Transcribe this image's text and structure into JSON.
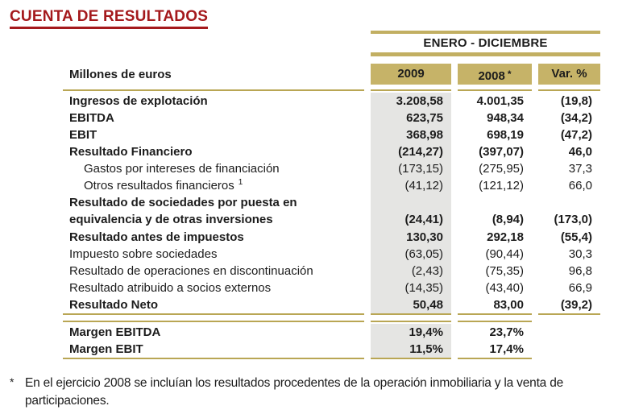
{
  "title": "CUENTA DE RESULTADOS",
  "colors": {
    "gold_fill": "#C6B368",
    "gold_rule": "#B9A654",
    "column_shade": "#E5E5E3",
    "title_red": "#A4191C"
  },
  "table": {
    "period_header": "ENERO - DICIEMBRE",
    "unit_label": "Millones de euros",
    "columns": {
      "y2009": "2009",
      "y2008": "2008",
      "y2008_note": "*",
      "variation": "Var. %"
    },
    "rows": [
      {
        "label": "Ingresos de explotación",
        "v2009": "3.208,58",
        "v2008": "4.001,35",
        "var": "(19,8)"
      },
      {
        "label": "EBITDA",
        "v2009": "623,75",
        "v2008": "948,34",
        "var": "(34,2)"
      },
      {
        "label": "EBIT",
        "v2009": "368,98",
        "v2008": "698,19",
        "var": "(47,2)"
      },
      {
        "label": "Resultado Financiero",
        "v2009": "(214,27)",
        "v2008": "(397,07)",
        "var": "46,0"
      },
      {
        "label": "Gastos por intereses de financiación",
        "v2009": "(173,15)",
        "v2008": "(275,95)",
        "var": "37,3"
      },
      {
        "label": "Otros resultados financieros",
        "footnote_ref": "1",
        "v2009": "(41,12)",
        "v2008": "(121,12)",
        "var": "66,0"
      },
      {
        "label": "Resultado de sociedades por puesta en equivalencia y de otras inversiones",
        "v2009": "(24,41)",
        "v2008": "(8,94)",
        "var": "(173,0)"
      },
      {
        "label": "Resultado antes de impuestos",
        "v2009": "130,30",
        "v2008": "292,18",
        "var": "(55,4)"
      },
      {
        "label": "Impuesto sobre sociedades",
        "v2009": "(63,05)",
        "v2008": "(90,44)",
        "var": "30,3"
      },
      {
        "label": "Resultado de operaciones en discontinuación",
        "v2009": "(2,43)",
        "v2008": "(75,35)",
        "var": "96,8"
      },
      {
        "label": "Resultado atribuido a socios externos",
        "v2009": "(14,35)",
        "v2008": "(43,40)",
        "var": "66,9"
      },
      {
        "label": "Resultado Neto",
        "v2009": "50,48",
        "v2008": "83,00",
        "var": "(39,2)"
      }
    ],
    "margin_rows": [
      {
        "label": "Margen EBITDA",
        "v2009": "19,4%",
        "v2008": "23,7%"
      },
      {
        "label": "Margen EBIT",
        "v2009": "11,5%",
        "v2008": "17,4%"
      }
    ]
  },
  "footnote": {
    "marker": "*",
    "text": "En el ejercicio 2008 se incluían los resultados procedentes de la operación inmobiliaria y la venta de participaciones."
  }
}
